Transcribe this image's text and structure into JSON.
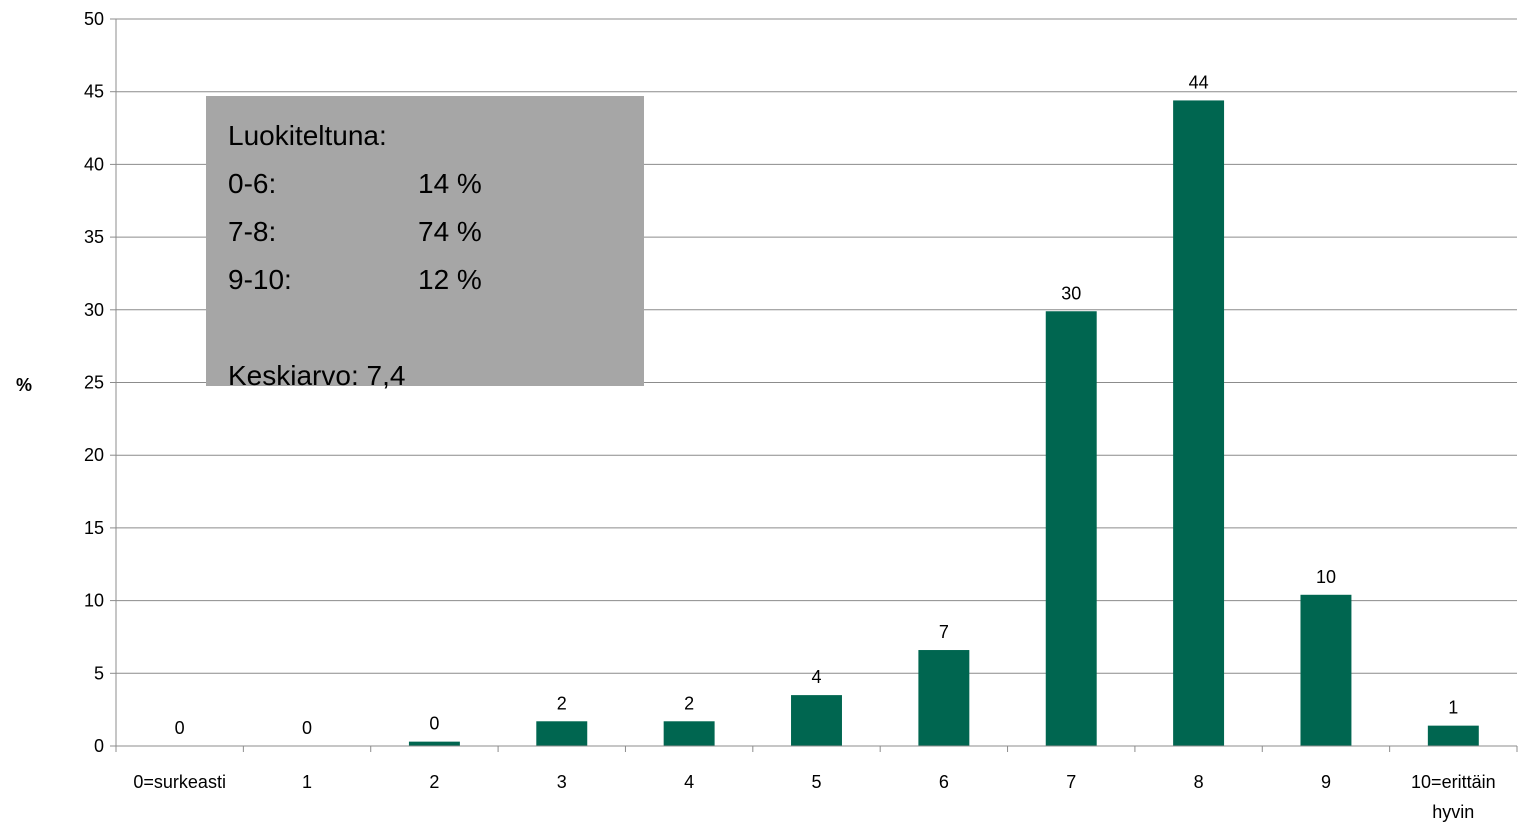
{
  "chart_data": {
    "type": "bar",
    "categories": [
      "0=surkeasti",
      "1",
      "2",
      "3",
      "4",
      "5",
      "6",
      "7",
      "8",
      "9",
      "10=erittäin hyvin"
    ],
    "values": [
      0,
      0,
      0.3,
      1.7,
      1.7,
      3.5,
      6.6,
      29.9,
      44.4,
      10.4,
      1.4
    ],
    "data_labels": [
      "0",
      "0",
      "0",
      "2",
      "2",
      "4",
      "7",
      "30",
      "44",
      "10",
      "1"
    ],
    "ylabel": "%",
    "xlabel": "",
    "ylim": [
      0,
      50
    ],
    "yticks": [
      0,
      5,
      10,
      15,
      20,
      25,
      30,
      35,
      40,
      45,
      50
    ],
    "grid": true,
    "bar_color": "#006650"
  },
  "summary": {
    "title": "Luokiteltuna:",
    "rows": [
      {
        "label": "0-6:",
        "value": "14 %"
      },
      {
        "label": "7-8:",
        "value": "74 %"
      },
      {
        "label": "9-10:",
        "value": "12 %"
      }
    ],
    "mean": "Keskiarvo: 7,4",
    "background": "#a6a6a6"
  }
}
